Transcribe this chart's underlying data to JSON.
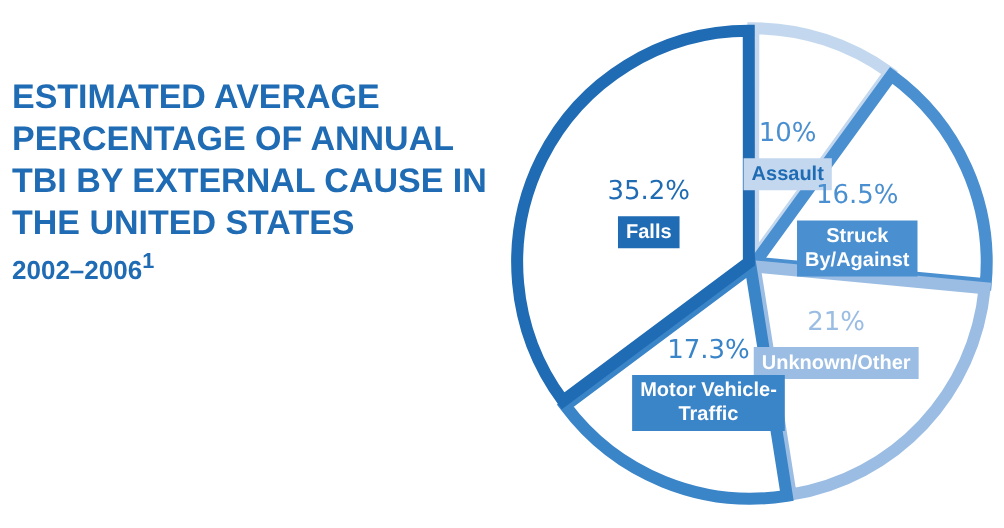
{
  "chart_data": {
    "type": "pie",
    "title": "ESTIMATED AVERAGE PERCENTAGE OF ANNUAL TBI BY EXTERNAL CAUSE IN THE UNITED STATES",
    "subtitle": "2002–2006$^{1}$",
    "categories": [
      "Assault",
      "Struck By/Against",
      "Unknown/Other",
      "Motor Vehicle-Traffic",
      "Falls"
    ],
    "values": [
      10,
      16.5,
      21,
      17.3,
      35.2
    ],
    "colors": [
      "#c3d8ee",
      "#4a8fd0",
      "#9bbde3",
      "#3a84c8",
      "#1f6bb4"
    ],
    "value_labels": [
      "10%",
      "16.5%",
      "21%",
      "17.3%",
      "35.2%"
    ],
    "legend": false
  }
}
